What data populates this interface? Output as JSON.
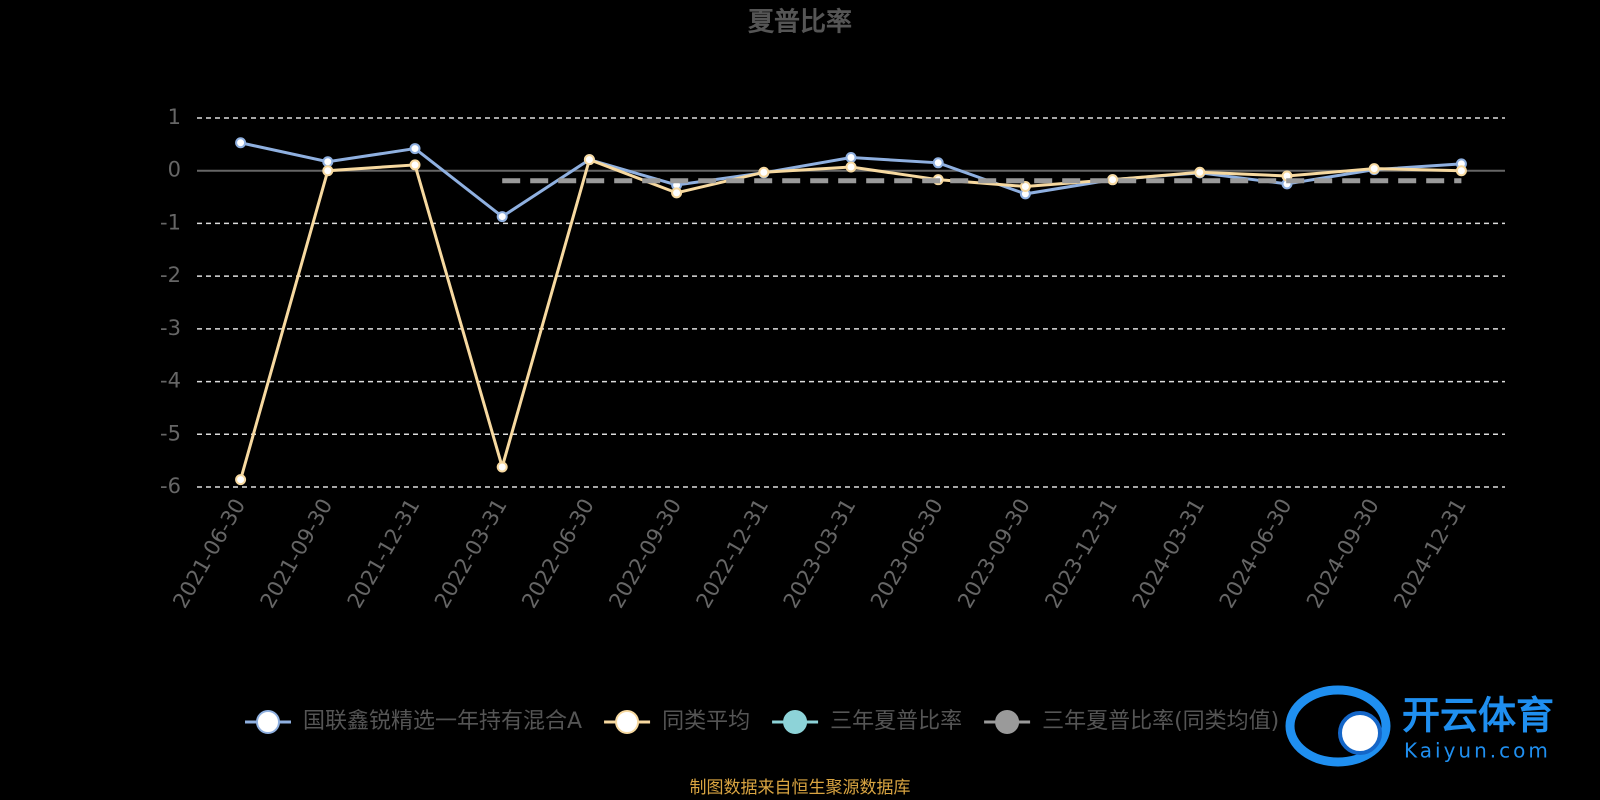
{
  "chart_data": {
    "type": "line",
    "title": "夏普比率",
    "categories": [
      "2021-06-30",
      "2021-09-30",
      "2021-12-31",
      "2022-03-31",
      "2022-06-30",
      "2022-09-30",
      "2022-12-31",
      "2023-03-31",
      "2023-06-30",
      "2023-09-30",
      "2023-12-31",
      "2024-03-31",
      "2024-06-30",
      "2024-09-30",
      "2024-12-31"
    ],
    "series": [
      {
        "name": "国联鑫锐精选一年持有混合A",
        "color": "#8fb0e0",
        "values": [
          0.53,
          0.17,
          0.42,
          -0.87,
          0.21,
          -0.27,
          -0.04,
          0.25,
          0.15,
          -0.44,
          -0.17,
          -0.04,
          -0.25,
          0.02,
          0.13
        ]
      },
      {
        "name": "同类平均",
        "color": "#f7d9a0",
        "values": [
          -5.86,
          0,
          0.11,
          -5.62,
          0.21,
          -0.42,
          -0.03,
          0.07,
          -0.17,
          -0.3,
          -0.17,
          -0.03,
          -0.1,
          0.04,
          0
        ]
      },
      {
        "name": "三年夏普比率",
        "color": "#8dd3d8",
        "values": [
          null,
          null,
          null,
          null,
          null,
          null,
          null,
          null,
          null,
          null,
          null,
          null,
          null,
          null,
          null
        ]
      },
      {
        "name": "三年夏普比率(同类均值)",
        "color": "#9a9a9a",
        "dashed": true,
        "values": [
          null,
          null,
          null,
          -0.19,
          -0.19,
          -0.19,
          -0.19,
          -0.19,
          -0.19,
          -0.19,
          -0.19,
          -0.19,
          -0.19,
          -0.19,
          -0.19
        ]
      }
    ],
    "ylim": [
      -6,
      1
    ],
    "yticks": [
      -6,
      -5,
      -4,
      -3,
      -2,
      -1,
      0,
      1
    ],
    "grid": true,
    "source": "制图数据来自恒生聚源数据库"
  },
  "watermark": {
    "name": "开云体育",
    "url": "Kaiyun.com"
  }
}
